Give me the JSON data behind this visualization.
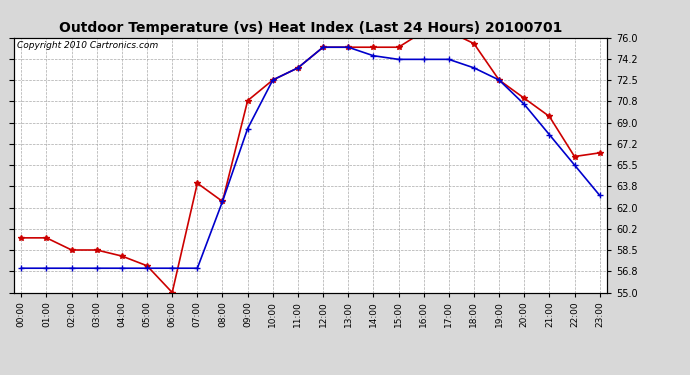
{
  "title": "Outdoor Temperature (vs) Heat Index (Last 24 Hours) 20100701",
  "copyright": "Copyright 2010 Cartronics.com",
  "hours": [
    "00:00",
    "01:00",
    "02:00",
    "03:00",
    "04:00",
    "05:00",
    "06:00",
    "07:00",
    "08:00",
    "09:00",
    "10:00",
    "11:00",
    "12:00",
    "13:00",
    "14:00",
    "15:00",
    "16:00",
    "17:00",
    "18:00",
    "19:00",
    "20:00",
    "21:00",
    "22:00",
    "23:00"
  ],
  "temp": [
    59.5,
    59.5,
    58.5,
    58.5,
    58.0,
    57.2,
    55.0,
    64.0,
    62.5,
    70.8,
    72.5,
    73.5,
    75.2,
    75.2,
    75.2,
    75.2,
    76.5,
    76.5,
    75.5,
    72.5,
    71.0,
    69.5,
    66.2,
    66.5
  ],
  "heat_index": [
    57.0,
    57.0,
    57.0,
    57.0,
    57.0,
    57.0,
    57.0,
    57.0,
    62.5,
    68.5,
    72.5,
    73.5,
    75.2,
    75.2,
    74.5,
    74.2,
    74.2,
    74.2,
    73.5,
    72.5,
    70.5,
    68.0,
    65.5,
    63.0
  ],
  "ylim": [
    55.0,
    76.0
  ],
  "yticks": [
    55.0,
    56.8,
    58.5,
    60.2,
    62.0,
    63.8,
    65.5,
    67.2,
    69.0,
    70.8,
    72.5,
    74.2,
    76.0
  ],
  "temp_color": "#cc0000",
  "heat_index_color": "#0000cc",
  "background_color": "#d8d8d8",
  "plot_bg_color": "#ffffff",
  "grid_color": "#aaaaaa",
  "title_fontsize": 10,
  "copyright_fontsize": 6.5
}
